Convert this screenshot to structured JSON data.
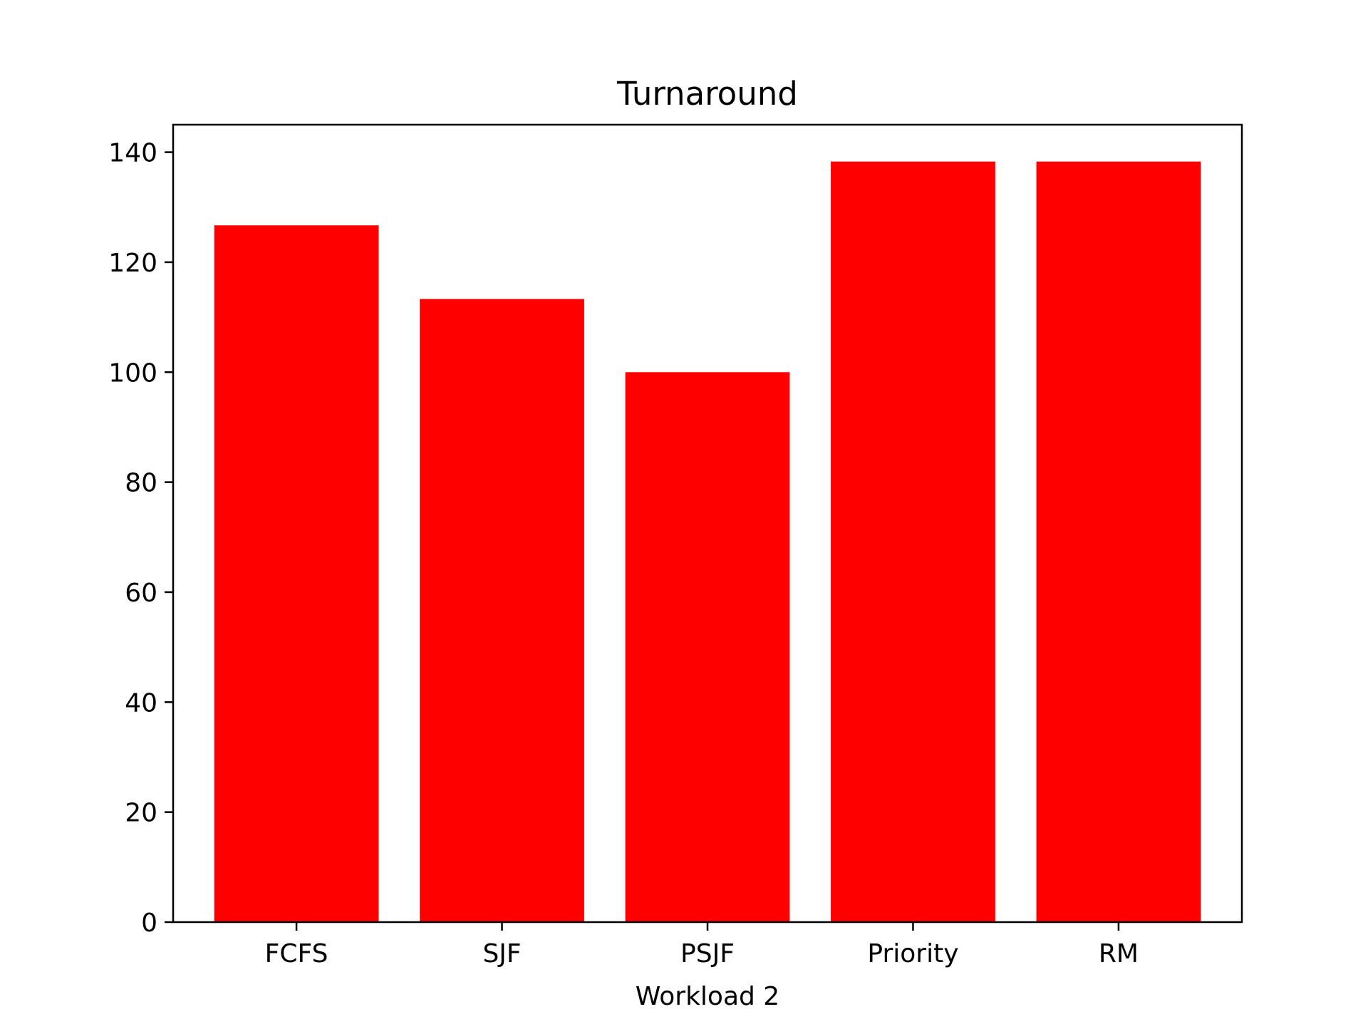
{
  "chart_data": {
    "type": "bar",
    "title": "Turnaround",
    "xlabel": "Workload 2",
    "ylabel": "",
    "categories": [
      "FCFS",
      "SJF",
      "PSJF",
      "Priority",
      "RM"
    ],
    "values": [
      126.7,
      113.3,
      100.0,
      138.3,
      138.3
    ],
    "ylim": [
      0,
      145
    ],
    "yticks": [
      0,
      20,
      40,
      60,
      80,
      100,
      120,
      140
    ],
    "bar_color": "#ff0000",
    "grid": false,
    "legend": "none"
  }
}
